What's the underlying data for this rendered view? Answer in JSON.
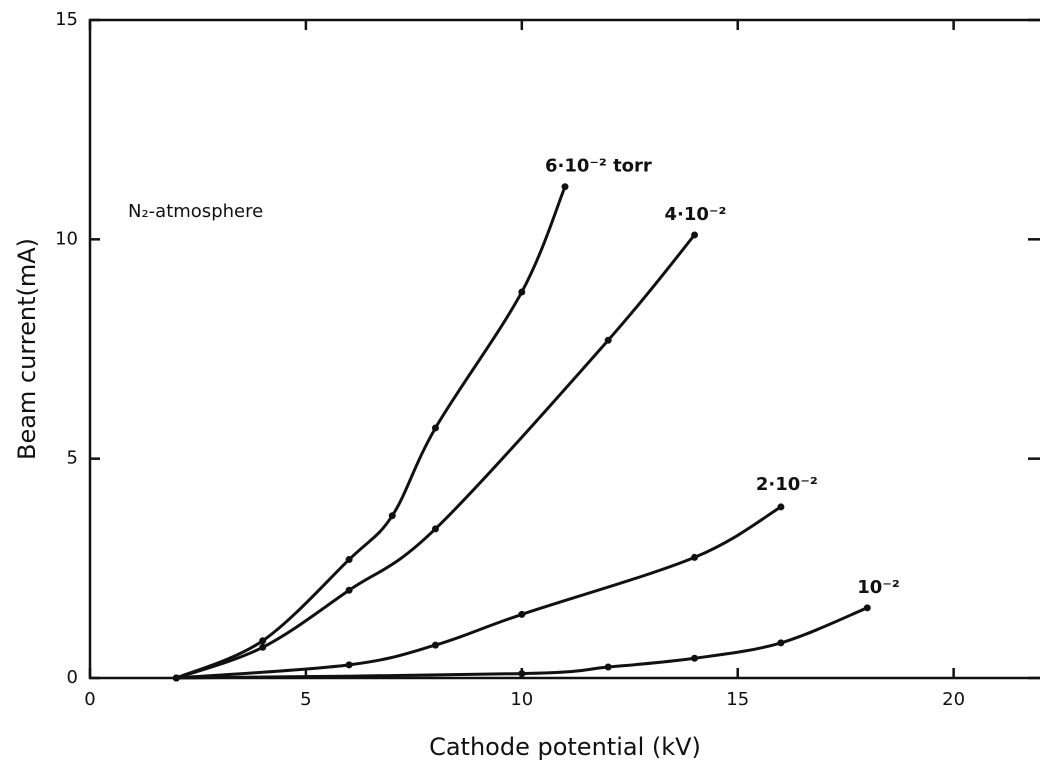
{
  "chart_data": {
    "type": "line",
    "xlabel": "Cathode potential (kV)",
    "ylabel": "Beam current(mA)",
    "annotation": "N₂-atmosphere",
    "xlim": [
      0,
      22
    ],
    "ylim": [
      0,
      15
    ],
    "xticks": [
      0,
      5,
      10,
      15,
      20
    ],
    "yticks": [
      0,
      5,
      10,
      15
    ],
    "color": "#111111",
    "series": [
      {
        "name": "6·10⁻² torr",
        "x": [
          2,
          4,
          6,
          7,
          8,
          10,
          11
        ],
        "values": [
          0,
          0.85,
          2.7,
          3.7,
          5.7,
          8.8,
          11.2
        ]
      },
      {
        "name": "4·10⁻²",
        "x": [
          2,
          4,
          6,
          8,
          12,
          14
        ],
        "values": [
          0,
          0.7,
          2.0,
          3.4,
          7.7,
          10.1
        ]
      },
      {
        "name": "2·10⁻²",
        "x": [
          2,
          6,
          8,
          10,
          14,
          16
        ],
        "values": [
          0,
          0.3,
          0.75,
          1.45,
          2.75,
          3.9
        ]
      },
      {
        "name": "10⁻²",
        "x": [
          2,
          10,
          12,
          14,
          16,
          18
        ],
        "values": [
          0,
          0.1,
          0.25,
          0.45,
          0.8,
          1.6
        ]
      }
    ]
  }
}
